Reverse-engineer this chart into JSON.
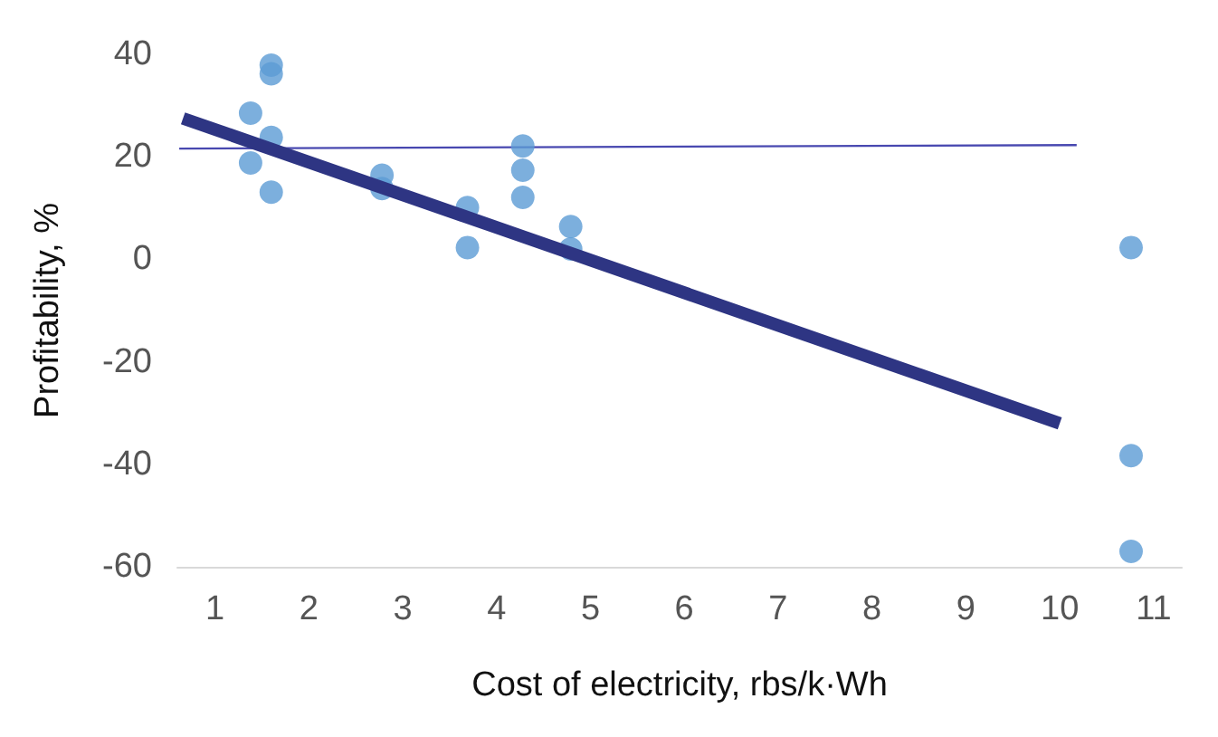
{
  "chart_data": {
    "type": "scatter",
    "xlabel": "Cost of electricity, rbs/k·Wh",
    "ylabel": "Profitability, %",
    "xlim": [
      0.6,
      11.3
    ],
    "xticks": [
      1,
      2,
      3,
      4,
      5,
      6,
      7,
      8,
      9,
      10,
      11
    ],
    "ylim": [
      -60,
      40
    ],
    "yticks": [
      -60,
      -40,
      -20,
      0,
      20,
      40
    ],
    "grid": false,
    "series": [
      {
        "marker": "circle",
        "color": "#5b9bd5",
        "x": [
          1.38,
          1.38,
          1.6,
          1.6,
          1.6,
          1.6,
          2.78,
          2.78,
          3.69,
          3.69,
          4.28,
          4.28,
          4.28,
          4.79,
          4.79,
          10.76,
          10.76,
          10.76
        ],
        "values": [
          28.5,
          18.8,
          37.9,
          36.2,
          23.8,
          13.1,
          16.4,
          13.8,
          10.1,
          2.3,
          22.1,
          17.4,
          12.1,
          6.4,
          2.0,
          2.3,
          -38.3,
          -57
        ]
      },
      {
        "type": "line",
        "marker": "none",
        "color": "#4848b0",
        "x": [
          0.62,
          10.18
        ],
        "values": [
          21.6,
          22.3
        ]
      },
      {
        "type": "line",
        "marker": "none",
        "color": "#2e3583",
        "x": [
          0.66,
          10.0
        ],
        "values": [
          27.5,
          -32
        ]
      }
    ]
  }
}
